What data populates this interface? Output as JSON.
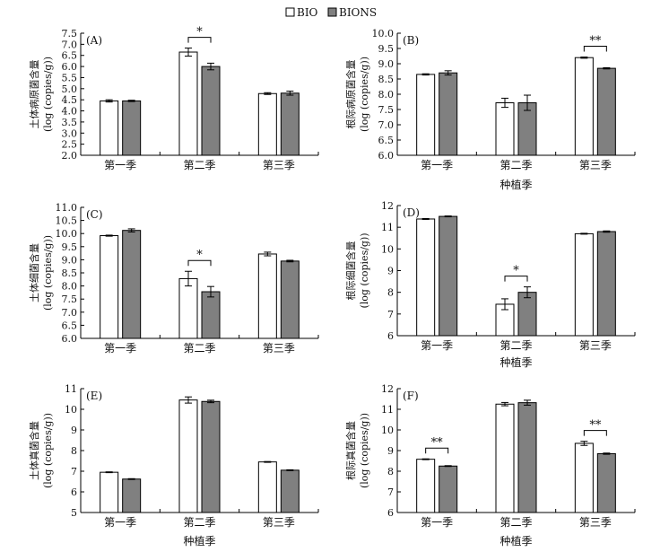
{
  "legend": [
    {
      "label": "BIO",
      "fill": "#ffffff"
    },
    {
      "label": "BIONS",
      "fill": "#808080"
    }
  ],
  "chart_data": [
    {
      "type": "bar",
      "tag": "(A)",
      "ylabel_top": "土体病原菌含量",
      "ylabel_bottom": "(log (copies/g))",
      "xlabel": "",
      "categories": [
        "第一季",
        "第二季",
        "第三季"
      ],
      "ylim": [
        2.0,
        7.5
      ],
      "yticks": [
        "2.0",
        "2.5",
        "3.0",
        "3.5",
        "4.0",
        "4.5",
        "5.0",
        "5.5",
        "6.0",
        "6.5",
        "7.0",
        "7.5"
      ],
      "series": [
        {
          "name": "BIO",
          "values": [
            4.45,
            6.65,
            4.78
          ],
          "errors": [
            0.05,
            0.18,
            0.04
          ]
        },
        {
          "name": "BIONS",
          "values": [
            4.45,
            6.0,
            4.8
          ],
          "errors": [
            0.03,
            0.15,
            0.09
          ]
        }
      ],
      "significance": [
        {
          "category": 1,
          "label": "*"
        }
      ]
    },
    {
      "type": "bar",
      "tag": "(B)",
      "ylabel_top": "根际病原菌含量",
      "ylabel_bottom": "(log (copies/g))",
      "xlabel": "种植季",
      "categories": [
        "第一季",
        "第二季",
        "第三季"
      ],
      "ylim": [
        6.0,
        10.0
      ],
      "yticks": [
        "6.0",
        "6.5",
        "7.0",
        "7.5",
        "8.0",
        "8.5",
        "9.0",
        "9.5",
        "10.0"
      ],
      "series": [
        {
          "name": "BIO",
          "values": [
            8.65,
            7.72,
            9.2
          ],
          "errors": [
            0.02,
            0.15,
            0.02
          ]
        },
        {
          "name": "BIONS",
          "values": [
            8.7,
            7.72,
            8.85
          ],
          "errors": [
            0.07,
            0.25,
            0.02
          ]
        }
      ],
      "significance": [
        {
          "category": 2,
          "label": "**"
        }
      ]
    },
    {
      "type": "bar",
      "tag": "(C)",
      "ylabel_top": "土体细菌含量",
      "ylabel_bottom": "(log (copies/g))",
      "xlabel": "",
      "categories": [
        "第一季",
        "第二季",
        "第三季"
      ],
      "ylim": [
        6.0,
        11.0
      ],
      "yticks": [
        "6.0",
        "6.5",
        "7.0",
        "7.5",
        "8.0",
        "8.5",
        "9.0",
        "9.5",
        "10.0",
        "10.5",
        "11.0"
      ],
      "series": [
        {
          "name": "BIO",
          "values": [
            9.92,
            8.28,
            9.22
          ],
          "errors": [
            0.02,
            0.28,
            0.07
          ]
        },
        {
          "name": "BIONS",
          "values": [
            10.12,
            7.78,
            8.95
          ],
          "errors": [
            0.06,
            0.2,
            0.03
          ]
        }
      ],
      "significance": [
        {
          "category": 1,
          "label": "*"
        }
      ]
    },
    {
      "type": "bar",
      "tag": "(D)",
      "ylabel_top": "根际细菌含量",
      "ylabel_bottom": "(log (copies/g))",
      "xlabel": "种植季",
      "categories": [
        "第一季",
        "第二季",
        "第三季"
      ],
      "ylim": [
        6,
        12
      ],
      "yticks": [
        "6",
        "7",
        "8",
        "9",
        "10",
        "11",
        "12"
      ],
      "series": [
        {
          "name": "BIO",
          "values": [
            11.38,
            7.45,
            10.7
          ],
          "errors": [
            0.02,
            0.25,
            0.02
          ]
        },
        {
          "name": "BIONS",
          "values": [
            11.5,
            8.0,
            10.8
          ],
          "errors": [
            0.02,
            0.25,
            0.03
          ]
        }
      ],
      "significance": [
        {
          "category": 1,
          "label": "*"
        }
      ]
    },
    {
      "type": "bar",
      "tag": "(E)",
      "ylabel_top": "土体真菌含量",
      "ylabel_bottom": "(log (copies/g))",
      "xlabel": "种植季",
      "categories": [
        "第一季",
        "第二季",
        "第三季"
      ],
      "ylim": [
        5,
        11
      ],
      "yticks": [
        "5",
        "6",
        "7",
        "8",
        "9",
        "10",
        "11"
      ],
      "series": [
        {
          "name": "BIO",
          "values": [
            6.95,
            10.45,
            7.45
          ],
          "errors": [
            0.02,
            0.15,
            0.02
          ]
        },
        {
          "name": "BIONS",
          "values": [
            6.62,
            10.38,
            7.05
          ],
          "errors": [
            0.02,
            0.06,
            0.02
          ]
        }
      ],
      "significance": []
    },
    {
      "type": "bar",
      "tag": "(F)",
      "ylabel_top": "根际真菌含量",
      "ylabel_bottom": "(log (copies/g))",
      "xlabel": "种植季",
      "categories": [
        "第一季",
        "第二季",
        "第三季"
      ],
      "ylim": [
        6,
        12
      ],
      "yticks": [
        "6",
        "7",
        "8",
        "9",
        "10",
        "11",
        "12"
      ],
      "series": [
        {
          "name": "BIO",
          "values": [
            8.58,
            11.25,
            9.35
          ],
          "errors": [
            0.02,
            0.08,
            0.1
          ]
        },
        {
          "name": "BIONS",
          "values": [
            8.25,
            11.32,
            8.85
          ],
          "errors": [
            0.02,
            0.12,
            0.03
          ]
        }
      ],
      "significance": [
        {
          "category": 0,
          "label": "**"
        },
        {
          "category": 2,
          "label": "**"
        }
      ]
    }
  ]
}
